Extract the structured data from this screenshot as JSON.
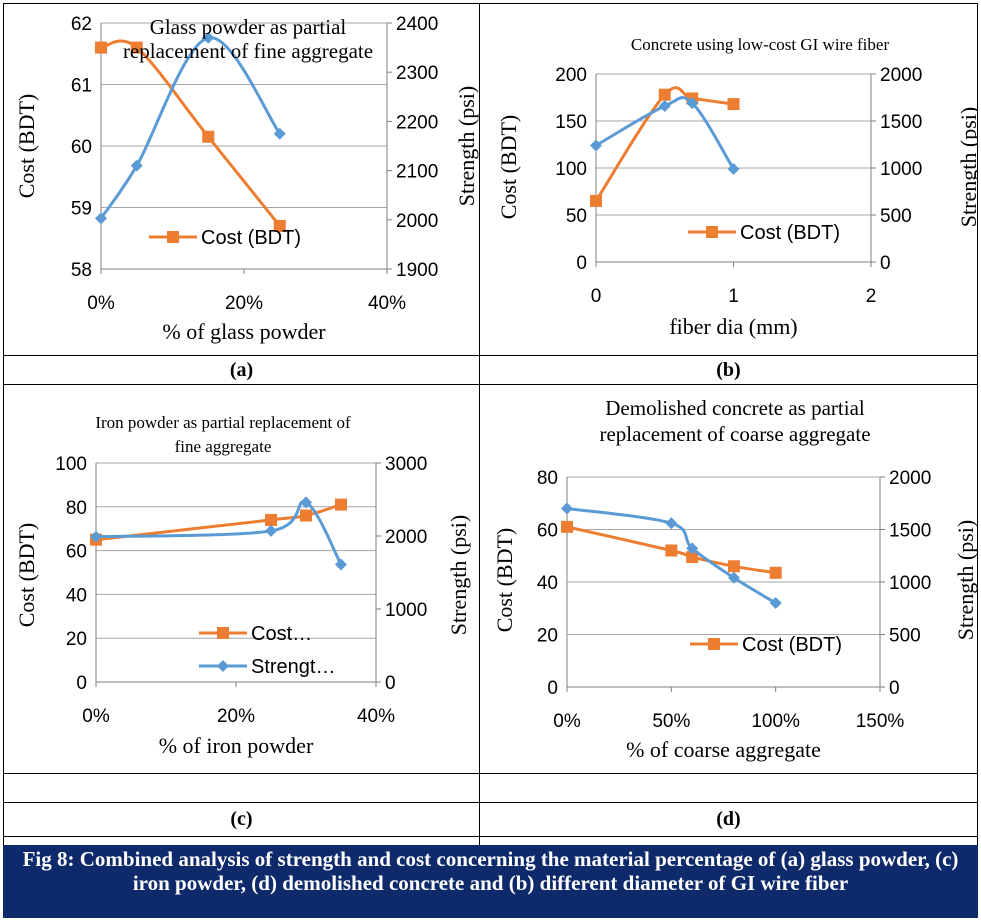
{
  "panels": [
    {
      "id": "a",
      "label": "(a)",
      "chart_data": {
        "type": "line",
        "title": "Glass powder as partial replacement of fine aggregate",
        "xlabel": "% of glass powder",
        "ylabel": "Cost (BDT)",
        "y2label": "Strength (psi)",
        "xlim": [
          0,
          40
        ],
        "x_ticks": [
          "0%",
          "20%",
          "40%"
        ],
        "x_tick_values": [
          0,
          20,
          40
        ],
        "ylim": [
          58,
          62
        ],
        "y_ticks": [
          "58",
          "59",
          "60",
          "61",
          "62"
        ],
        "y_tick_values": [
          58,
          59,
          60,
          61,
          62
        ],
        "y2lim": [
          1900,
          2400
        ],
        "y2_ticks": [
          "1900",
          "2000",
          "2100",
          "2200",
          "2300",
          "2400"
        ],
        "y2_tick_values": [
          1900,
          2000,
          2100,
          2200,
          2300,
          2400
        ],
        "grid": true,
        "legend": [
          "Cost (BDT)"
        ],
        "series": [
          {
            "name": "Cost (BDT)",
            "axis": "left",
            "color": "#ed7d31",
            "marker": "square",
            "x": [
              0,
              5,
              15,
              25
            ],
            "values": [
              61.6,
              61.6,
              60.15,
              58.7
            ]
          },
          {
            "axis": "right",
            "color": "#5b9bd5",
            "marker": "diamond",
            "x": [
              0,
              5,
              15,
              25
            ],
            "values": [
              2003,
              2110,
              2370,
              2175
            ]
          }
        ]
      }
    },
    {
      "id": "b",
      "label": "(b)",
      "chart_data": {
        "type": "line",
        "title": "Concrete using low-cost GI wire fiber",
        "xlabel": "fiber dia (mm)",
        "ylabel": "Cost (BDT)",
        "y2label": "Strength (psi)",
        "xlim": [
          0,
          2
        ],
        "x_ticks": [
          "0",
          "1",
          "2"
        ],
        "x_tick_values": [
          0,
          1,
          2
        ],
        "ylim": [
          0,
          200
        ],
        "y_ticks": [
          "0",
          "50",
          "100",
          "150",
          "200"
        ],
        "y_tick_values": [
          0,
          50,
          100,
          150,
          200
        ],
        "y2lim": [
          0,
          2000
        ],
        "y2_ticks": [
          "0",
          "500",
          "1000",
          "1500",
          "2000"
        ],
        "y2_tick_values": [
          0,
          500,
          1000,
          1500,
          2000
        ],
        "grid": true,
        "legend": [
          "Cost (BDT)"
        ],
        "series": [
          {
            "name": "Cost (BDT)",
            "axis": "left",
            "color": "#ed7d31",
            "marker": "square",
            "x": [
              0,
              0.5,
              0.7,
              1.0
            ],
            "values": [
              65,
              178,
              174,
              168
            ]
          },
          {
            "axis": "right",
            "color": "#5b9bd5",
            "marker": "diamond",
            "x": [
              0,
              0.5,
              0.7,
              1.0
            ],
            "values": [
              1240,
              1660,
              1690,
              990
            ]
          }
        ]
      }
    },
    {
      "id": "c",
      "label": "(c)",
      "chart_data": {
        "type": "line",
        "title": "Iron powder as partial replacement of fine aggregate",
        "xlabel": "% of iron powder",
        "ylabel": "Cost (BDT)",
        "y2label": "Strength (psi)",
        "xlim": [
          0,
          40
        ],
        "x_ticks": [
          "0%",
          "20%",
          "40%"
        ],
        "x_tick_values": [
          0,
          20,
          40
        ],
        "ylim": [
          0,
          100
        ],
        "y_ticks": [
          "0",
          "20",
          "40",
          "60",
          "80",
          "100"
        ],
        "y_tick_values": [
          0,
          20,
          40,
          60,
          80,
          100
        ],
        "y2lim": [
          0,
          3000
        ],
        "y2_ticks": [
          "0",
          "1000",
          "2000",
          "3000"
        ],
        "y2_tick_values": [
          0,
          1000,
          2000,
          3000
        ],
        "grid": true,
        "legend": [
          "Cost…",
          "Strengt…"
        ],
        "series": [
          {
            "name": "Cost…",
            "axis": "left",
            "color": "#ed7d31",
            "marker": "square",
            "x": [
              0,
              25,
              30,
              35
            ],
            "values": [
              65,
              74,
              76,
              81
            ]
          },
          {
            "name": "Strengt…",
            "axis": "right",
            "color": "#5b9bd5",
            "marker": "diamond",
            "x": [
              0,
              25,
              30,
              35
            ],
            "values": [
              1990,
              2070,
              2460,
              1610
            ]
          }
        ]
      }
    },
    {
      "id": "d",
      "label": "(d)",
      "chart_data": {
        "type": "line",
        "title": "Demolished concrete as partial replacement of coarse aggregate",
        "xlabel": "% of coarse aggregate",
        "ylabel": "Cost (BDT)",
        "y2label": "Strength (psi)",
        "xlim": [
          0,
          150
        ],
        "x_ticks": [
          "0%",
          "50%",
          "100%",
          "150%"
        ],
        "x_tick_values": [
          0,
          50,
          100,
          150
        ],
        "ylim": [
          0,
          80
        ],
        "y_ticks": [
          "0",
          "20",
          "40",
          "60",
          "80"
        ],
        "y_tick_values": [
          0,
          20,
          40,
          60,
          80
        ],
        "y2lim": [
          0,
          2000
        ],
        "y2_ticks": [
          "0",
          "500",
          "1000",
          "1500",
          "2000"
        ],
        "y2_tick_values": [
          0,
          500,
          1000,
          1500,
          2000
        ],
        "grid": true,
        "legend": [
          "Cost (BDT)"
        ],
        "series": [
          {
            "name": "Cost (BDT)",
            "axis": "left",
            "color": "#ed7d31",
            "marker": "square",
            "x": [
              0,
              50,
              60,
              80,
              100
            ],
            "values": [
              61,
              52,
              49.5,
              46,
              43.5
            ]
          },
          {
            "axis": "right",
            "color": "#5b9bd5",
            "marker": "diamond",
            "x": [
              0,
              50,
              60,
              80,
              100
            ],
            "values": [
              1700,
              1560,
              1320,
              1040,
              800
            ]
          }
        ]
      }
    }
  ],
  "caption": "Fig 8: Combined analysis of strength and cost concerning the material percentage of (a) glass powder, (c) iron powder, (d) demolished concrete and (b) different diameter of GI wire fiber"
}
